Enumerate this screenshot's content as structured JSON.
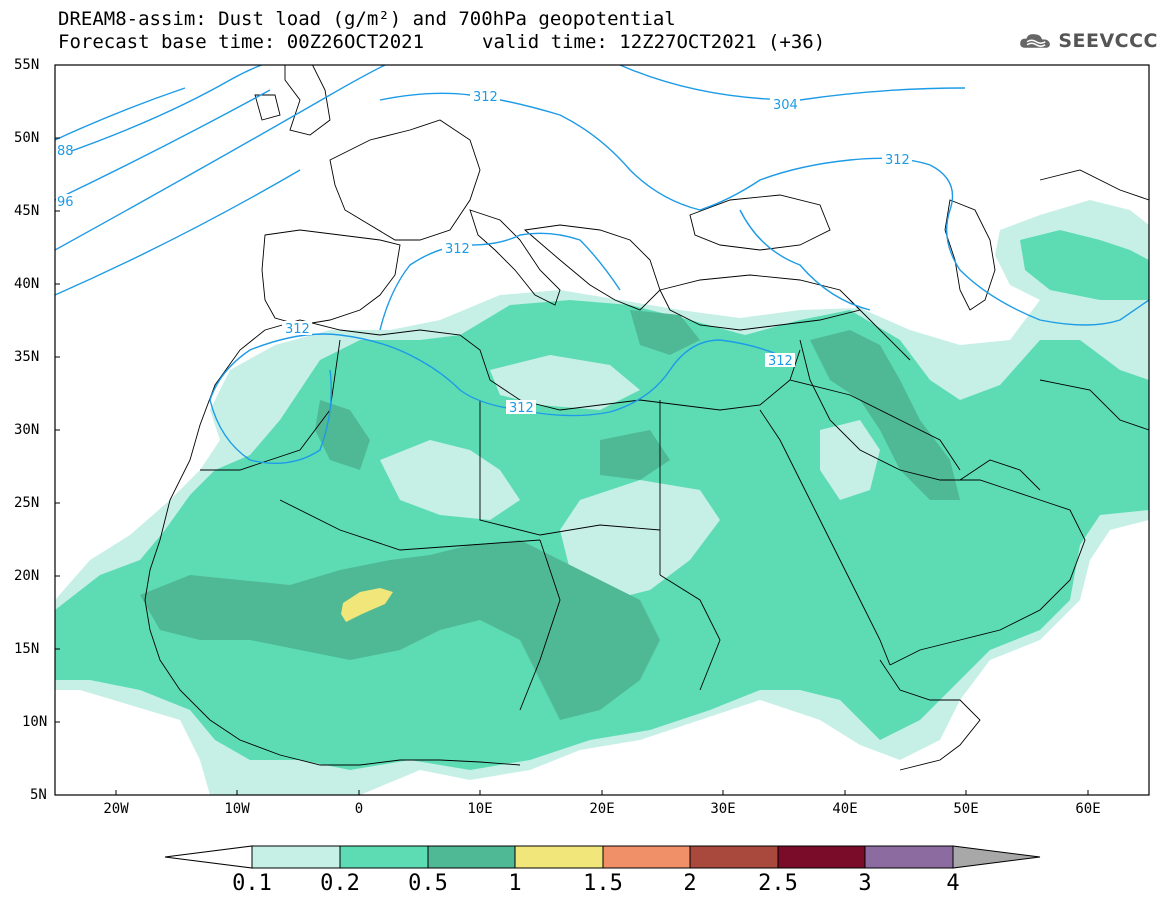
{
  "header": {
    "title_line1": "DREAM8-assim: Dust load (g/m²) and 700hPa geopotential",
    "title_line2": "Forecast base time: 00Z26OCT2021",
    "valid_time": "valid time: 12Z27OCT2021 (+36)",
    "logo_text": "SEEVCCC"
  },
  "map": {
    "lat_labels": [
      "55N",
      "50N",
      "45N",
      "40N",
      "35N",
      "30N",
      "25N",
      "20N",
      "15N",
      "10N",
      "5N"
    ],
    "lon_labels": [
      "20W",
      "10W",
      "0",
      "10E",
      "20E",
      "30E",
      "40E",
      "50E",
      "60E"
    ],
    "contour_labels": [
      "312",
      "312",
      "312",
      "312",
      "312",
      "312",
      "304",
      "88",
      "96"
    ]
  },
  "colorbar": {
    "labels": [
      "0.1",
      "0.2",
      "0.5",
      "1",
      "1.5",
      "2",
      "2.5",
      "3",
      "4"
    ],
    "colors": [
      "#c6f0e6",
      "#5ddcb4",
      "#4fb894",
      "#f0e67a",
      "#ef9068",
      "#a9483c",
      "#7a0c2a",
      "#8c6ca0",
      "#a8a8a8"
    ]
  },
  "colors": {
    "dust_light": "#c6f0e6",
    "dust_mid": "#5ddcb4",
    "dust_dark": "#4fb894",
    "dust_yellow": "#f0e67a",
    "contour": "#1e9be6",
    "coast": "#000000"
  }
}
